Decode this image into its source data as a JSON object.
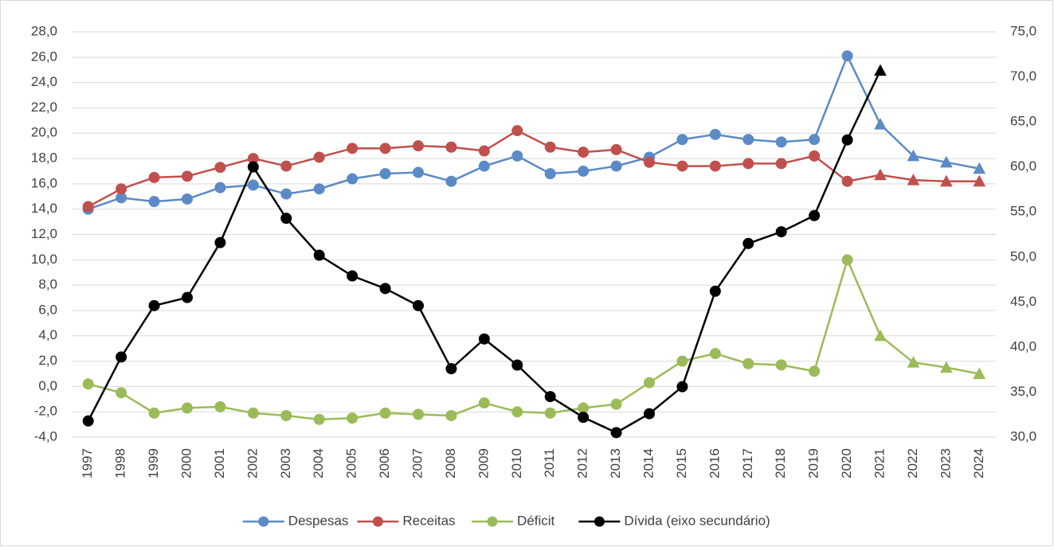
{
  "chart_data": {
    "type": "line",
    "categories": [
      "1997",
      "1998",
      "1999",
      "2000",
      "2001",
      "2002",
      "2003",
      "2004",
      "2005",
      "2006",
      "2007",
      "2008",
      "2009",
      "2010",
      "2011",
      "2012",
      "2013",
      "2014",
      "2015",
      "2016",
      "2017",
      "2018",
      "2019",
      "2020",
      "2021",
      "2022",
      "2023",
      "2024"
    ],
    "marker": "circle",
    "projection_marker": "triangle",
    "projection_from": "2021",
    "grid": true,
    "legend": "bottom",
    "ylim": [
      -4,
      28
    ],
    "yticks": [
      {
        "value": -4,
        "label": "-4,0"
      },
      {
        "value": -2,
        "label": "-2,0"
      },
      {
        "value": 0,
        "label": "0,0"
      },
      {
        "value": 2,
        "label": "2,0"
      },
      {
        "value": 4,
        "label": "4,0"
      },
      {
        "value": 6,
        "label": "6,0"
      },
      {
        "value": 8,
        "label": "8,0"
      },
      {
        "value": 10,
        "label": "10,0"
      },
      {
        "value": 12,
        "label": "12,0"
      },
      {
        "value": 14,
        "label": "14,0"
      },
      {
        "value": 16,
        "label": "16,0"
      },
      {
        "value": 18,
        "label": "18,0"
      },
      {
        "value": 20,
        "label": "20,0"
      },
      {
        "value": 22,
        "label": "22,0"
      },
      {
        "value": 24,
        "label": "24,0"
      },
      {
        "value": 26,
        "label": "26,0"
      },
      {
        "value": 28,
        "label": "28,0"
      }
    ],
    "y2lim": [
      30,
      75
    ],
    "y2ticks": [
      {
        "value": 30,
        "label": "30,0"
      },
      {
        "value": 35,
        "label": "35,0"
      },
      {
        "value": 40,
        "label": "40,0"
      },
      {
        "value": 45,
        "label": "45,0"
      },
      {
        "value": 50,
        "label": "50,0"
      },
      {
        "value": 55,
        "label": "55,0"
      },
      {
        "value": 60,
        "label": "60,0"
      },
      {
        "value": 65,
        "label": "65,0"
      },
      {
        "value": 70,
        "label": "70,0"
      },
      {
        "value": 75,
        "label": "75,0"
      }
    ],
    "series": [
      {
        "name": "Despesas",
        "color": "#5b8ac6",
        "values": [
          14.0,
          14.9,
          14.6,
          14.8,
          15.7,
          15.9,
          15.2,
          15.6,
          16.4,
          16.8,
          16.9,
          16.2,
          17.4,
          18.2,
          16.8,
          17.0,
          17.4,
          18.1,
          19.5,
          19.9,
          19.5,
          19.3,
          19.5,
          26.1,
          20.7,
          18.2,
          17.7,
          17.2
        ]
      },
      {
        "name": "Receitas",
        "color": "#c0504d",
        "values": [
          14.2,
          15.6,
          16.5,
          16.6,
          17.3,
          18.0,
          17.4,
          18.1,
          18.8,
          18.8,
          19.0,
          18.9,
          18.6,
          20.2,
          18.9,
          18.5,
          18.7,
          17.7,
          17.4,
          17.4,
          17.6,
          17.6,
          18.2,
          16.2,
          16.7,
          16.3,
          16.2,
          16.2
        ]
      },
      {
        "name": "Déficit",
        "color": "#9bbb59",
        "values": [
          0.2,
          -0.5,
          -2.1,
          -1.7,
          -1.6,
          -2.1,
          -2.3,
          -2.6,
          -2.5,
          -2.1,
          -2.2,
          -2.3,
          -1.3,
          -2.0,
          -2.1,
          -1.7,
          -1.4,
          0.3,
          2.0,
          2.6,
          1.8,
          1.7,
          1.2,
          10.0,
          4.0,
          1.9,
          1.5,
          1.0
        ]
      },
      {
        "name": "Dívida (eixo secundário)",
        "color": "#000000",
        "axis": "y2",
        "values": [
          31.8,
          38.9,
          44.6,
          45.5,
          51.6,
          60.0,
          54.3,
          50.2,
          47.9,
          46.5,
          44.6,
          37.6,
          40.9,
          38.0,
          34.5,
          32.2,
          30.5,
          32.6,
          35.6,
          46.2,
          51.5,
          52.8,
          54.6,
          63.0,
          70.7,
          null,
          null,
          null
        ]
      }
    ]
  }
}
